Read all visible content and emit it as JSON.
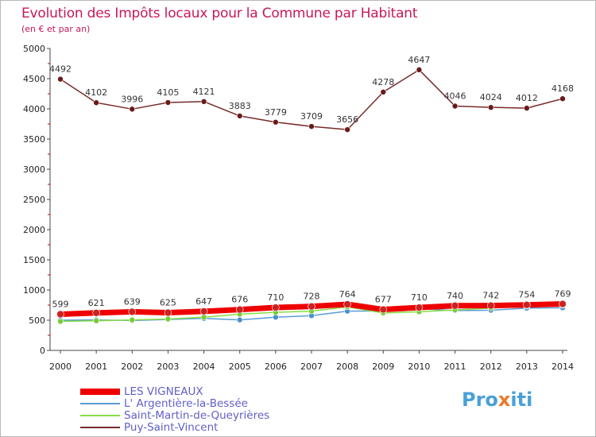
{
  "title": "Evolution des Impôts locaux pour la Commune par Habitant",
  "subtitle": "(en € et par an)",
  "logo": {
    "part1": "Pro",
    "part2": "x",
    "part3": "iti"
  },
  "chart_data": {
    "type": "line",
    "x": [
      2000,
      2001,
      2002,
      2003,
      2004,
      2005,
      2006,
      2007,
      2008,
      2009,
      2010,
      2011,
      2012,
      2013,
      2014
    ],
    "ylim": [
      0,
      5000
    ],
    "yticks": [
      0,
      500,
      1000,
      1500,
      2000,
      2500,
      3000,
      3500,
      4000,
      4500,
      5000
    ],
    "grid": false,
    "legend_position": "bottom-left",
    "series": [
      {
        "name": "LES VIGNEAUX",
        "color": "#ee0000",
        "labels_shown": true,
        "values": [
          599,
          621,
          639,
          625,
          647,
          676,
          710,
          728,
          764,
          677,
          710,
          740,
          742,
          754,
          769
        ]
      },
      {
        "name": "L' Argentière-la-Bessée",
        "color": "#5a9cd6",
        "labels_shown": false,
        "values": [
          500,
          505,
          495,
          512,
          530,
          505,
          550,
          575,
          650,
          655,
          690,
          660,
          665,
          700,
          705
        ]
      },
      {
        "name": "Saint-Martin-de-Queyrières",
        "color": "#88dd44",
        "labels_shown": false,
        "values": [
          480,
          490,
          505,
          520,
          550,
          600,
          630,
          650,
          720,
          620,
          640,
          670,
          700,
          730,
          745
        ]
      },
      {
        "name": "Puy-Saint-Vincent",
        "color": "#7a2a2a",
        "labels_shown": true,
        "values": [
          4492,
          4102,
          3996,
          4105,
          4121,
          3883,
          3779,
          3709,
          3656,
          4278,
          4647,
          4046,
          4024,
          4012,
          4168
        ]
      }
    ]
  }
}
